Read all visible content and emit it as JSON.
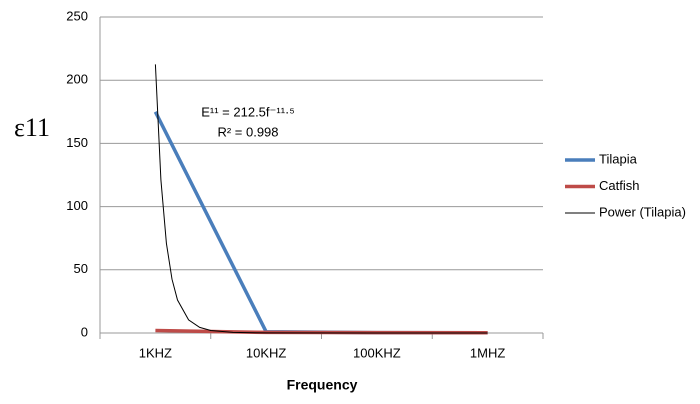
{
  "chart_data": {
    "type": "line",
    "y_label": "ε11",
    "x_label": "Frequency",
    "categories": [
      "1KHZ",
      "10KHZ",
      "100KHZ",
      "1MHZ"
    ],
    "series": [
      {
        "name": "Tilapia",
        "color": "#4a7ebb",
        "values": [
          175,
          1,
          0.3,
          0.2
        ]
      },
      {
        "name": "Catfish",
        "color": "#be4b48",
        "values": [
          2,
          0.5,
          0.3,
          0.2
        ]
      },
      {
        "name": "Power (Tilapia)",
        "color": "#000000",
        "trendline": true,
        "x": [
          1,
          1.05,
          1.1,
          1.15,
          1.2,
          1.3,
          1.4,
          1.5,
          1.7,
          2,
          3,
          4
        ],
        "values": [
          212.5,
          121.2,
          71.0,
          42.6,
          26.1,
          10.4,
          4.4,
          2.0,
          0.48,
          0.07,
          0,
          0
        ]
      }
    ],
    "annotations": [
      "E¹¹ = 212.5f⁻¹¹·⁵",
      "R² = 0.998"
    ],
    "ylim": [
      0,
      250
    ],
    "yticks": [
      0,
      50,
      100,
      150,
      200,
      250
    ],
    "grid": true,
    "legend": "right"
  }
}
